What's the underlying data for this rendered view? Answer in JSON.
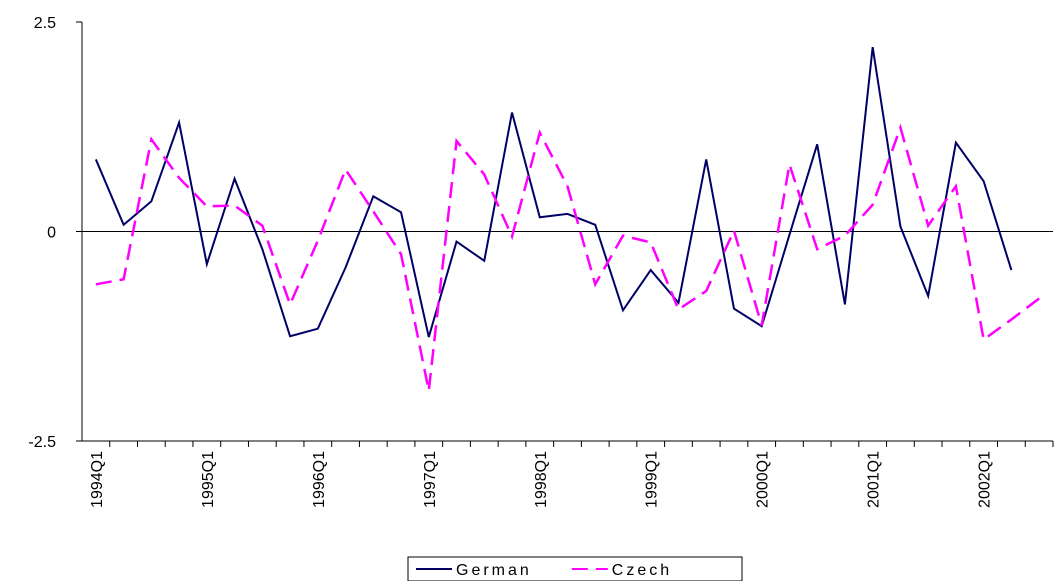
{
  "chart_data": {
    "type": "line",
    "categories": [
      "1994Q1",
      null,
      null,
      null,
      "1995Q1",
      null,
      null,
      null,
      "1996Q1",
      null,
      null,
      null,
      "1997Q1",
      null,
      null,
      null,
      "1998Q1",
      null,
      null,
      null,
      "1999Q1",
      null,
      null,
      null,
      "2000Q1",
      null,
      null,
      null,
      "2001Q1",
      null,
      null,
      null,
      "2002Q1",
      null,
      null
    ],
    "series": [
      {
        "name": "German",
        "color": "#000066",
        "dash": "solid",
        "values": [
          0.86,
          0.08,
          0.36,
          1.3,
          -0.39,
          0.63,
          -0.21,
          -1.25,
          -1.16,
          -0.43,
          0.42,
          0.23,
          -1.26,
          -0.12,
          -0.35,
          1.42,
          0.17,
          0.21,
          0.08,
          -0.94,
          -0.46,
          -0.85,
          0.86,
          -0.92,
          -1.13,
          -0.04,
          1.04,
          -0.87,
          2.2,
          0.06,
          -0.77,
          1.06,
          0.6,
          -0.46,
          null
        ]
      },
      {
        "name": "Czech",
        "color": "#ff00ff",
        "dash": "dashed",
        "values": [
          -0.63,
          -0.57,
          1.1,
          0.64,
          0.3,
          0.31,
          0.07,
          -0.87,
          -0.11,
          0.74,
          0.24,
          -0.27,
          -1.9,
          1.08,
          0.68,
          -0.06,
          1.18,
          0.54,
          -0.63,
          -0.05,
          -0.13,
          -0.93,
          -0.71,
          0.01,
          -1.12,
          0.8,
          -0.21,
          -0.05,
          0.32,
          1.24,
          0.07,
          0.54,
          -1.29,
          -1.05,
          -0.8
        ]
      }
    ],
    "ylim": [
      -2.5,
      2.5
    ],
    "yticks": [
      -2.5,
      0,
      2.5
    ],
    "grid": false,
    "legend": "bottom"
  }
}
